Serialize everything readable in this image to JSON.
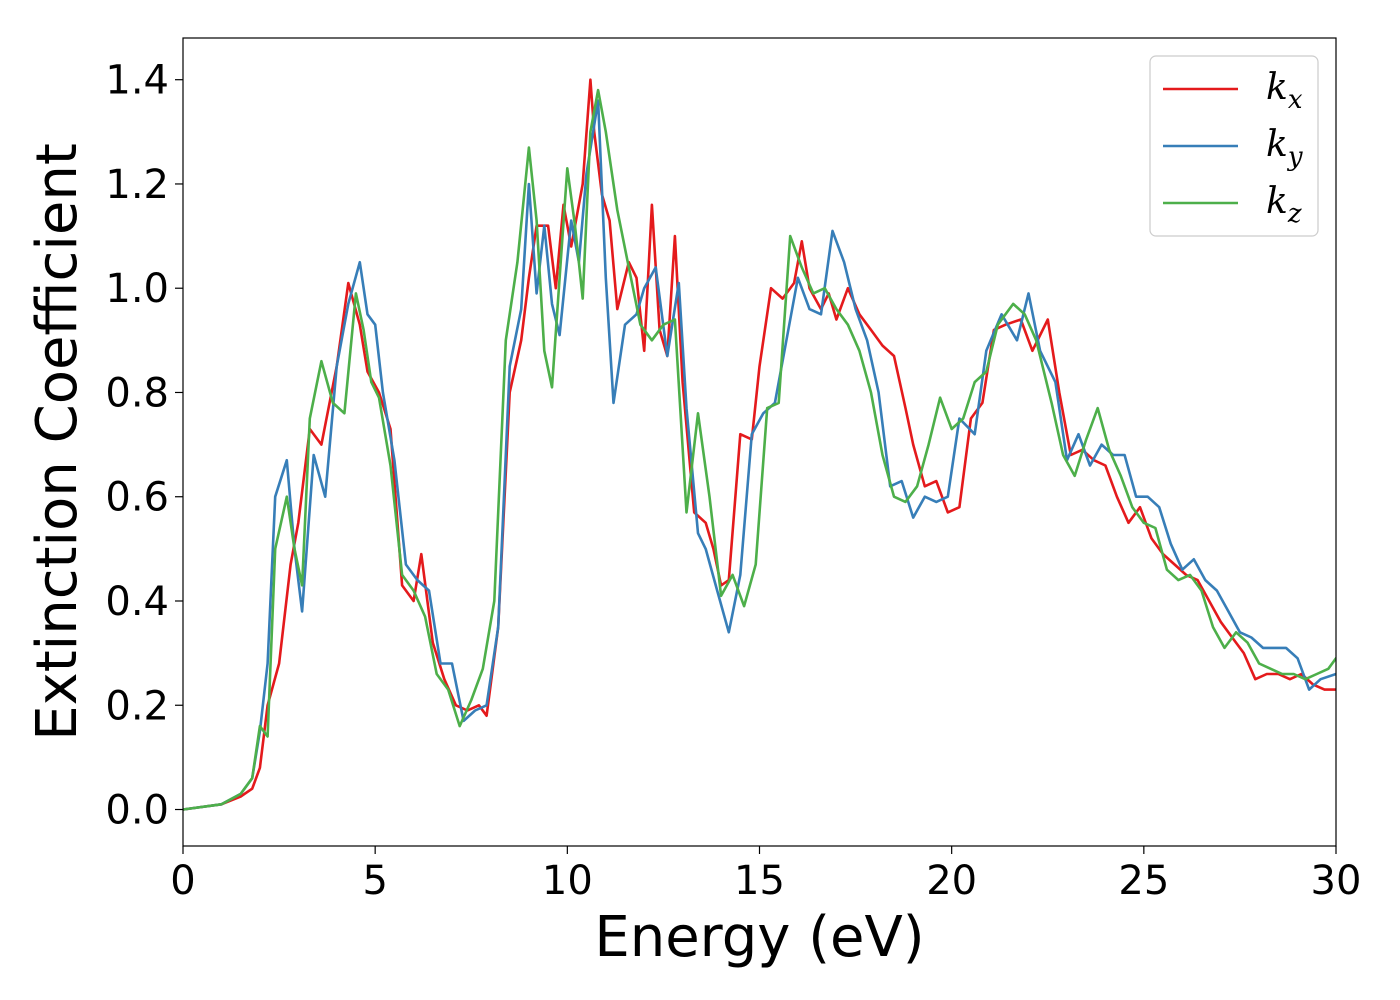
{
  "chart_data": {
    "type": "line",
    "title": "",
    "xlabel": "Energy (eV)",
    "ylabel": "Extinction Coefficient",
    "xlim": [
      0,
      30
    ],
    "ylim": [
      -0.07,
      1.48
    ],
    "x_ticks": [
      "0",
      "5",
      "10",
      "15",
      "20",
      "25",
      "30"
    ],
    "y_ticks": [
      "0.0",
      "0.2",
      "0.4",
      "0.6",
      "0.8",
      "1.0",
      "1.2",
      "1.4"
    ],
    "grid": false,
    "legend_position": "top-right",
    "series": [
      {
        "name": "k",
        "subscript": "x",
        "color": "#e41a1c",
        "x": [
          0,
          1,
          1.5,
          1.8,
          2,
          2.2,
          2.5,
          2.8,
          3.0,
          3.3,
          3.6,
          4.0,
          4.3,
          4.6,
          4.8,
          5.1,
          5.4,
          5.7,
          6.0,
          6.2,
          6.5,
          6.8,
          7.1,
          7.4,
          7.7,
          7.9,
          8.2,
          8.5,
          8.8,
          9.0,
          9.2,
          9.5,
          9.7,
          9.9,
          10.1,
          10.4,
          10.6,
          10.7,
          10.9,
          11.1,
          11.3,
          11.6,
          11.8,
          12.0,
          12.2,
          12.4,
          12.6,
          12.8,
          13.0,
          13.3,
          13.6,
          13.8,
          14.0,
          14.2,
          14.5,
          14.8,
          15.0,
          15.3,
          15.6,
          15.9,
          16.1,
          16.3,
          16.6,
          16.8,
          17.0,
          17.3,
          17.6,
          17.9,
          18.2,
          18.5,
          18.8,
          19.0,
          19.3,
          19.6,
          19.9,
          20.2,
          20.5,
          20.8,
          21.1,
          21.4,
          21.8,
          22.1,
          22.5,
          22.8,
          23.1,
          23.4,
          23.7,
          24.0,
          24.3,
          24.6,
          24.9,
          25.2,
          25.5,
          25.8,
          26.1,
          26.4,
          26.7,
          27.0,
          27.3,
          27.6,
          27.9,
          28.2,
          28.5,
          28.8,
          29.1,
          29.4,
          29.7,
          30
        ],
        "y": [
          0,
          0.01,
          0.025,
          0.04,
          0.08,
          0.2,
          0.28,
          0.47,
          0.55,
          0.73,
          0.7,
          0.85,
          1.01,
          0.93,
          0.84,
          0.8,
          0.73,
          0.43,
          0.4,
          0.49,
          0.32,
          0.25,
          0.2,
          0.19,
          0.2,
          0.18,
          0.35,
          0.8,
          0.9,
          1.02,
          1.12,
          1.12,
          1.0,
          1.16,
          1.08,
          1.2,
          1.4,
          1.3,
          1.18,
          1.13,
          0.96,
          1.05,
          1.02,
          0.88,
          1.16,
          0.92,
          0.87,
          1.1,
          0.82,
          0.57,
          0.55,
          0.5,
          0.43,
          0.44,
          0.72,
          0.71,
          0.85,
          1.0,
          0.98,
          1.01,
          1.09,
          1.0,
          0.96,
          0.99,
          0.94,
          1.0,
          0.95,
          0.92,
          0.89,
          0.87,
          0.77,
          0.7,
          0.62,
          0.63,
          0.57,
          0.58,
          0.75,
          0.78,
          0.92,
          0.93,
          0.94,
          0.88,
          0.94,
          0.8,
          0.68,
          0.69,
          0.67,
          0.66,
          0.6,
          0.55,
          0.58,
          0.52,
          0.49,
          0.47,
          0.45,
          0.44,
          0.4,
          0.36,
          0.33,
          0.3,
          0.25,
          0.26,
          0.26,
          0.25,
          0.26,
          0.24,
          0.23,
          0.23
        ]
      },
      {
        "name": "k",
        "subscript": "y",
        "color": "#377eb8",
        "x": [
          0,
          1,
          1.5,
          1.8,
          2.0,
          2.2,
          2.4,
          2.7,
          2.9,
          3.1,
          3.4,
          3.7,
          4.0,
          4.3,
          4.6,
          4.8,
          5.0,
          5.2,
          5.5,
          5.8,
          6.1,
          6.4,
          6.7,
          7.0,
          7.3,
          7.6,
          7.9,
          8.2,
          8.5,
          8.8,
          9.0,
          9.2,
          9.4,
          9.6,
          9.8,
          10.1,
          10.3,
          10.5,
          10.8,
          11.0,
          11.2,
          11.5,
          11.8,
          12.0,
          12.3,
          12.6,
          12.9,
          13.1,
          13.4,
          13.6,
          13.9,
          14.2,
          14.5,
          14.8,
          15.1,
          15.4,
          15.7,
          16.0,
          16.3,
          16.6,
          16.9,
          17.2,
          17.5,
          17.8,
          18.1,
          18.4,
          18.7,
          19.0,
          19.3,
          19.6,
          19.9,
          20.2,
          20.6,
          20.9,
          21.3,
          21.7,
          22.0,
          22.3,
          22.7,
          23.0,
          23.3,
          23.6,
          23.9,
          24.2,
          24.5,
          24.8,
          25.1,
          25.4,
          25.7,
          26.0,
          26.3,
          26.6,
          26.9,
          27.2,
          27.5,
          27.8,
          28.1,
          28.4,
          28.7,
          29.0,
          29.3,
          29.6,
          30
        ],
        "y": [
          0,
          0.01,
          0.03,
          0.06,
          0.15,
          0.28,
          0.6,
          0.67,
          0.5,
          0.38,
          0.68,
          0.6,
          0.85,
          0.97,
          1.05,
          0.95,
          0.93,
          0.8,
          0.67,
          0.47,
          0.44,
          0.42,
          0.28,
          0.28,
          0.17,
          0.19,
          0.2,
          0.35,
          0.85,
          0.96,
          1.2,
          0.99,
          1.12,
          0.97,
          0.91,
          1.13,
          1.05,
          1.22,
          1.36,
          1.02,
          0.78,
          0.93,
          0.95,
          1.0,
          1.04,
          0.87,
          1.01,
          0.77,
          0.53,
          0.5,
          0.42,
          0.34,
          0.45,
          0.72,
          0.76,
          0.78,
          0.9,
          1.02,
          0.96,
          0.95,
          1.11,
          1.05,
          0.96,
          0.9,
          0.8,
          0.62,
          0.63,
          0.56,
          0.6,
          0.59,
          0.6,
          0.75,
          0.72,
          0.88,
          0.95,
          0.9,
          0.99,
          0.88,
          0.82,
          0.67,
          0.72,
          0.66,
          0.7,
          0.68,
          0.68,
          0.6,
          0.6,
          0.58,
          0.51,
          0.46,
          0.48,
          0.44,
          0.42,
          0.38,
          0.34,
          0.33,
          0.31,
          0.31,
          0.31,
          0.29,
          0.23,
          0.25,
          0.26
        ]
      },
      {
        "name": "k",
        "subscript": "z",
        "color": "#4daf4a",
        "x": [
          0,
          1,
          1.5,
          1.8,
          2.0,
          2.2,
          2.4,
          2.7,
          2.9,
          3.1,
          3.3,
          3.6,
          3.9,
          4.2,
          4.5,
          4.7,
          4.9,
          5.1,
          5.4,
          5.7,
          6.0,
          6.3,
          6.6,
          6.9,
          7.2,
          7.5,
          7.8,
          8.1,
          8.4,
          8.7,
          9.0,
          9.2,
          9.4,
          9.6,
          9.8,
          10.0,
          10.2,
          10.4,
          10.6,
          10.8,
          11.0,
          11.3,
          11.6,
          11.9,
          12.2,
          12.5,
          12.8,
          13.1,
          13.4,
          13.7,
          14.0,
          14.3,
          14.6,
          14.9,
          15.2,
          15.5,
          15.8,
          16.1,
          16.4,
          16.7,
          17.0,
          17.3,
          17.6,
          17.9,
          18.2,
          18.5,
          18.8,
          19.1,
          19.4,
          19.7,
          20.0,
          20.3,
          20.6,
          20.9,
          21.2,
          21.6,
          21.9,
          22.2,
          22.6,
          22.9,
          23.2,
          23.5,
          23.8,
          24.1,
          24.4,
          24.7,
          25.0,
          25.3,
          25.6,
          25.9,
          26.2,
          26.5,
          26.8,
          27.1,
          27.4,
          27.7,
          28.0,
          28.3,
          28.6,
          28.9,
          29.2,
          29.5,
          29.8,
          30
        ],
        "y": [
          0,
          0.01,
          0.03,
          0.06,
          0.16,
          0.14,
          0.5,
          0.6,
          0.5,
          0.43,
          0.75,
          0.86,
          0.78,
          0.76,
          0.99,
          0.92,
          0.82,
          0.79,
          0.66,
          0.45,
          0.42,
          0.37,
          0.26,
          0.23,
          0.16,
          0.21,
          0.27,
          0.4,
          0.9,
          1.05,
          1.27,
          1.13,
          0.88,
          0.81,
          1.02,
          1.23,
          1.12,
          0.98,
          1.3,
          1.38,
          1.3,
          1.15,
          1.04,
          0.93,
          0.9,
          0.93,
          0.94,
          0.57,
          0.76,
          0.6,
          0.41,
          0.45,
          0.39,
          0.47,
          0.77,
          0.78,
          1.1,
          1.04,
          0.99,
          1.0,
          0.96,
          0.93,
          0.88,
          0.8,
          0.68,
          0.6,
          0.59,
          0.62,
          0.7,
          0.79,
          0.73,
          0.75,
          0.82,
          0.84,
          0.93,
          0.97,
          0.95,
          0.9,
          0.78,
          0.68,
          0.64,
          0.71,
          0.77,
          0.69,
          0.64,
          0.58,
          0.55,
          0.54,
          0.46,
          0.44,
          0.45,
          0.42,
          0.35,
          0.31,
          0.34,
          0.32,
          0.28,
          0.27,
          0.26,
          0.26,
          0.25,
          0.26,
          0.27,
          0.29
        ]
      }
    ]
  }
}
